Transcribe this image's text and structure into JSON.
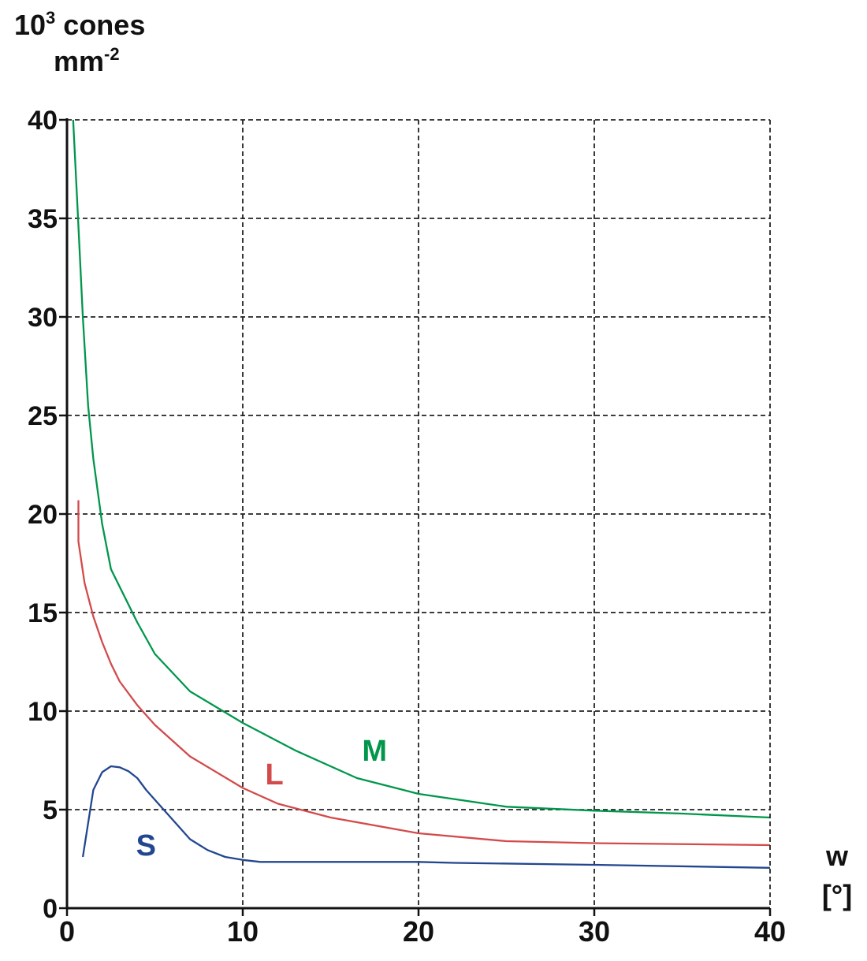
{
  "chart_data": {
    "type": "line",
    "ylabel_line1": "10",
    "ylabel_sup1": "3",
    "ylabel_line1_rest": " cones",
    "ylabel_line2": "mm",
    "ylabel_sup2": "-2",
    "xlabel_line1": "w",
    "xlabel_line2": "[°]",
    "xlim": [
      0,
      40
    ],
    "ylim": [
      0,
      40
    ],
    "xticks": [
      0,
      10,
      20,
      30,
      40
    ],
    "yticks": [
      0,
      5,
      10,
      15,
      20,
      25,
      30,
      35,
      40
    ],
    "grid": true,
    "series": [
      {
        "name": "M",
        "color": "#00964b",
        "points": [
          [
            0.35,
            40
          ],
          [
            0.6,
            35.5
          ],
          [
            0.9,
            30
          ],
          [
            1.2,
            25.5
          ],
          [
            1.5,
            22.8
          ],
          [
            2.0,
            19.5
          ],
          [
            2.5,
            17.2
          ],
          [
            4.0,
            14.5
          ],
          [
            5.0,
            12.9
          ],
          [
            7.0,
            11.0
          ],
          [
            10.0,
            9.4
          ],
          [
            13.0,
            8.0
          ],
          [
            16.5,
            6.6
          ],
          [
            20.0,
            5.8
          ],
          [
            25.0,
            5.15
          ],
          [
            30.0,
            4.95
          ],
          [
            35.0,
            4.8
          ],
          [
            40.0,
            4.6
          ]
        ],
        "label_pos": [
          17.5,
          8.0
        ]
      },
      {
        "name": "L",
        "color": "#d34a4a",
        "points": [
          [
            0.65,
            20.7
          ],
          [
            0.65,
            18.6
          ],
          [
            1.0,
            16.5
          ],
          [
            1.5,
            14.8
          ],
          [
            2.0,
            13.5
          ],
          [
            2.5,
            12.4
          ],
          [
            3.0,
            11.5
          ],
          [
            4.0,
            10.3
          ],
          [
            5.0,
            9.3
          ],
          [
            7.0,
            7.7
          ],
          [
            10.0,
            6.1
          ],
          [
            12.0,
            5.3
          ],
          [
            15.0,
            4.6
          ],
          [
            20.0,
            3.8
          ],
          [
            25.0,
            3.4
          ],
          [
            30.0,
            3.3
          ],
          [
            40.0,
            3.2
          ]
        ],
        "label_pos": [
          11.8,
          6.8
        ]
      },
      {
        "name": "S",
        "color": "#23478f",
        "points": [
          [
            0.9,
            2.6
          ],
          [
            1.5,
            6.0
          ],
          [
            2.0,
            6.9
          ],
          [
            2.5,
            7.2
          ],
          [
            3.0,
            7.15
          ],
          [
            3.5,
            6.95
          ],
          [
            4.0,
            6.6
          ],
          [
            4.5,
            6.0
          ],
          [
            5.0,
            5.5
          ],
          [
            6.0,
            4.5
          ],
          [
            7.0,
            3.5
          ],
          [
            8.0,
            2.95
          ],
          [
            9.0,
            2.6
          ],
          [
            10.0,
            2.45
          ],
          [
            11.0,
            2.35
          ],
          [
            14.0,
            2.35
          ],
          [
            20.0,
            2.35
          ],
          [
            22.0,
            2.3
          ],
          [
            30.0,
            2.2
          ],
          [
            40.0,
            2.05
          ]
        ],
        "label_pos": [
          4.5,
          3.2
        ]
      }
    ]
  }
}
